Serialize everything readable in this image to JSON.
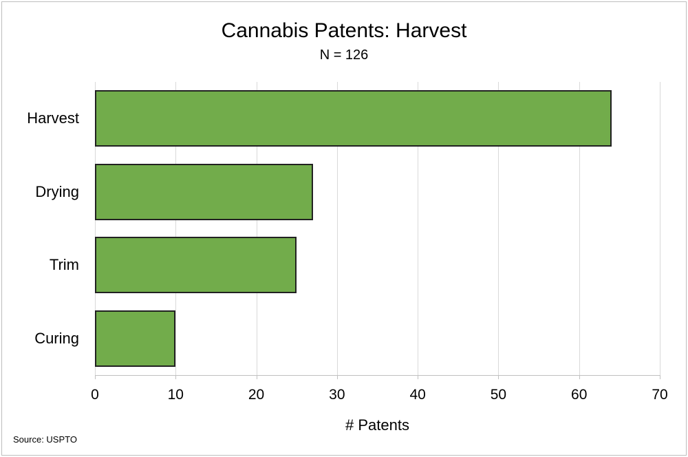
{
  "chart_data": {
    "type": "bar",
    "orientation": "horizontal",
    "title": "Cannabis Patents: Harvest",
    "subtitle": "N = 126",
    "categories": [
      "Harvest",
      "Drying",
      "Trim",
      "Curing"
    ],
    "values": [
      64,
      27,
      25,
      10
    ],
    "xlabel": "# Patents",
    "ylabel": "",
    "xlim": [
      0,
      70
    ],
    "xticks": [
      0,
      10,
      20,
      30,
      40,
      50,
      60,
      70
    ],
    "grid": "vertical-gridlines-on",
    "legend": "none",
    "source": "Source: USPTO",
    "colors": {
      "bar_fill": "#72AC4B",
      "bar_border": "#212121",
      "gridline": "#d9d9d9",
      "axis_line": "#c0c0c0",
      "text": "#000000",
      "background": "#ffffff",
      "frame_border": "#bdbdbd"
    }
  }
}
